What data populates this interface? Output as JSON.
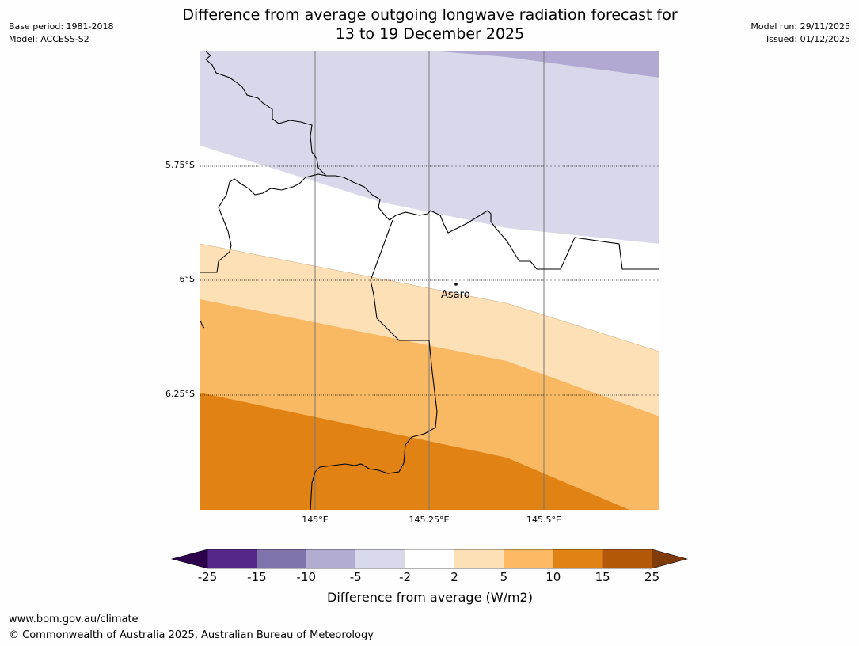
{
  "header": {
    "title_line1": "Difference from average outgoing longwave radiation forecast for",
    "title_line2": "13 to 19 December 2025",
    "base_period": "Base period: 1981-2018",
    "model": "Model: ACCESS-S2",
    "model_run": "Model run: 29/11/2025",
    "issued": "Issued: 01/12/2025"
  },
  "map": {
    "lat_labels": [
      "5.75°S",
      "6°S",
      "6.25°S"
    ],
    "lon_labels": [
      "145°E",
      "145.25°E",
      "145.5°E"
    ],
    "place": {
      "name": "Asaro"
    },
    "colors": {
      "band_minus5_minus2": "#d8d8ea",
      "band_minus10_minus5": "#b1a9d2",
      "band_minus2_2": "#ffffff",
      "band_2_5": "#fde0b6",
      "band_5_10": "#f9b862",
      "band_10_15": "#e08314"
    }
  },
  "colorbar": {
    "title": "Difference from average (W/m2)",
    "ticks": [
      "-25",
      "-15",
      "-10",
      "-5",
      "-2",
      "2",
      "5",
      "10",
      "15",
      "25"
    ],
    "colors": [
      "#2d004b",
      "#542788",
      "#8073ac",
      "#b2abd2",
      "#d8daeb",
      "#ffffff",
      "#fee0b6",
      "#fdb863",
      "#e08214",
      "#b35806",
      "#7f3b08"
    ]
  },
  "footer": {
    "url": "www.bom.gov.au/climate",
    "copyright": "© Commonwealth of Australia 2025, Australian Bureau of Meteorology"
  }
}
